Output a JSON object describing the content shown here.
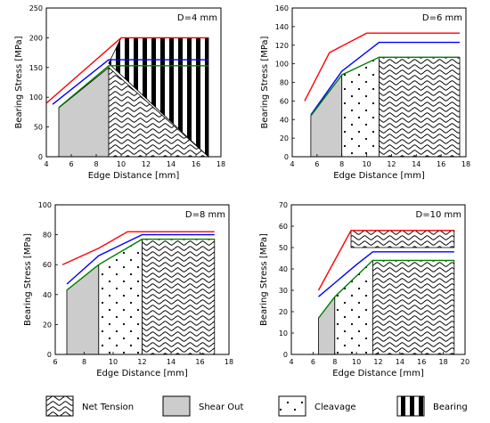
{
  "chart_data": [
    {
      "type": "area",
      "panel_label": "D=4 mm",
      "xlabel": "Edge Distance [mm]",
      "ylabel": "Bearing Stress [MPa]",
      "xlim": [
        4,
        18
      ],
      "ylim": [
        0,
        250
      ],
      "xticks": [
        "4",
        "6",
        "8",
        "10",
        "12",
        "14",
        "16",
        "18"
      ],
      "yticks": [
        "0",
        "50",
        "100",
        "150",
        "200",
        "250"
      ],
      "series": [
        {
          "color": "#ff0000",
          "points": [
            [
              4,
              90
            ],
            [
              10,
              200
            ],
            [
              17,
              200
            ]
          ]
        },
        {
          "color": "#0000ff",
          "points": [
            [
              4.5,
              88
            ],
            [
              9,
              163
            ],
            [
              17,
              163
            ]
          ]
        },
        {
          "color": "#008000",
          "points": [
            [
              5,
              83
            ],
            [
              9,
              153
            ],
            [
              17,
              153
            ]
          ]
        }
      ],
      "regions": [
        {
          "failure": "shear_out",
          "points": [
            [
              5,
              82
            ],
            [
              9,
              150
            ],
            [
              9,
              0
            ],
            [
              5,
              0
            ]
          ]
        },
        {
          "failure": "net_tension",
          "points": [
            [
              9,
              150
            ],
            [
              17,
              0
            ],
            [
              9,
              0
            ]
          ]
        },
        {
          "failure": "bearing",
          "points": [
            [
              9,
              157
            ],
            [
              10,
              200
            ],
            [
              17,
              200
            ],
            [
              17,
              0
            ]
          ]
        }
      ]
    },
    {
      "type": "area",
      "panel_label": "D=6 mm",
      "xlabel": "Edge Distance [mm]",
      "ylabel": "Bearing Stress [MPa]",
      "xlim": [
        4,
        18
      ],
      "ylim": [
        0,
        160
      ],
      "xticks": [
        "4",
        "6",
        "8",
        "10",
        "12",
        "14",
        "16",
        "18"
      ],
      "yticks": [
        "0",
        "20",
        "40",
        "60",
        "80",
        "100",
        "120",
        "140",
        "160"
      ],
      "series": [
        {
          "color": "#ff0000",
          "points": [
            [
              5,
              60
            ],
            [
              7,
              112
            ],
            [
              10,
              133
            ],
            [
              17.5,
              133
            ]
          ]
        },
        {
          "color": "#0000ff",
          "points": [
            [
              5.5,
              45
            ],
            [
              8,
              92
            ],
            [
              11,
              123
            ],
            [
              17.5,
              123
            ]
          ]
        },
        {
          "color": "#008000",
          "points": [
            [
              5.5,
              44
            ],
            [
              8,
              88
            ],
            [
              11,
              107
            ],
            [
              17.5,
              107
            ]
          ]
        }
      ],
      "regions": [
        {
          "failure": "shear_out",
          "points": [
            [
              5.5,
              44
            ],
            [
              8,
              88
            ],
            [
              8,
              0
            ],
            [
              5.5,
              0
            ]
          ]
        },
        {
          "failure": "cleavage",
          "points": [
            [
              8,
              88
            ],
            [
              11,
              107
            ],
            [
              11,
              0
            ],
            [
              8,
              0
            ]
          ]
        },
        {
          "failure": "net_tension",
          "points": [
            [
              11,
              107
            ],
            [
              17.5,
              107
            ],
            [
              17.5,
              0
            ],
            [
              11,
              0
            ]
          ]
        }
      ]
    },
    {
      "type": "area",
      "panel_label": "D=8 mm",
      "xlabel": "Edge Distance [mm]",
      "ylabel": "Bearing Stress [MPa]",
      "xlim": [
        6,
        18
      ],
      "ylim": [
        0,
        100
      ],
      "xticks": [
        "6",
        "8",
        "10",
        "12",
        "14",
        "16",
        "18"
      ],
      "yticks": [
        "0",
        "20",
        "40",
        "60",
        "80",
        "100"
      ],
      "series": [
        {
          "color": "#ff0000",
          "points": [
            [
              6.5,
              60
            ],
            [
              9,
              71
            ],
            [
              11,
              82
            ],
            [
              17,
              82
            ]
          ]
        },
        {
          "color": "#0000ff",
          "points": [
            [
              6.8,
              47
            ],
            [
              9,
              66
            ],
            [
              12,
              80
            ],
            [
              17,
              80
            ]
          ]
        },
        {
          "color": "#008000",
          "points": [
            [
              6.8,
              43
            ],
            [
              9,
              60
            ],
            [
              12,
              77
            ],
            [
              17,
              77
            ]
          ]
        }
      ],
      "regions": [
        {
          "failure": "shear_out",
          "points": [
            [
              6.8,
              43
            ],
            [
              9,
              60
            ],
            [
              9,
              0
            ],
            [
              6.8,
              0
            ]
          ]
        },
        {
          "failure": "cleavage",
          "points": [
            [
              9,
              60
            ],
            [
              12,
              77
            ],
            [
              12,
              0
            ],
            [
              9,
              0
            ]
          ]
        },
        {
          "failure": "net_tension",
          "points": [
            [
              12,
              77
            ],
            [
              17,
              77
            ],
            [
              17,
              0
            ],
            [
              12,
              0
            ]
          ]
        }
      ]
    },
    {
      "type": "area",
      "panel_label": "D=10 mm",
      "xlabel": "Edge Distance [mm]",
      "ylabel": "Bearing Stress [MPa]",
      "xlim": [
        4,
        20
      ],
      "ylim": [
        0,
        70
      ],
      "xticks": [
        "4",
        "6",
        "8",
        "10",
        "12",
        "14",
        "16",
        "18",
        "20"
      ],
      "yticks": [
        "0",
        "10",
        "20",
        "30",
        "40",
        "50",
        "60",
        "70"
      ],
      "series": [
        {
          "color": "#ff0000",
          "points": [
            [
              6.5,
              30
            ],
            [
              9.5,
              58
            ],
            [
              19,
              58
            ]
          ]
        },
        {
          "color": "#0000ff",
          "points": [
            [
              6.5,
              27
            ],
            [
              10,
              42
            ],
            [
              11.5,
              48
            ],
            [
              19,
              48
            ]
          ]
        },
        {
          "color": "#008000",
          "points": [
            [
              6.5,
              17
            ],
            [
              8,
              27
            ],
            [
              11.5,
              44
            ],
            [
              19,
              44
            ]
          ]
        }
      ],
      "regions": [
        {
          "failure": "shear_out",
          "points": [
            [
              6.5,
              17
            ],
            [
              8,
              27
            ],
            [
              8,
              0
            ],
            [
              6.5,
              0
            ]
          ]
        },
        {
          "failure": "cleavage",
          "points": [
            [
              8,
              27
            ],
            [
              11.5,
              44
            ],
            [
              11.5,
              0
            ],
            [
              8,
              0
            ]
          ]
        },
        {
          "failure": "net_tension",
          "points": [
            [
              11.5,
              44
            ],
            [
              19,
              44
            ],
            [
              19,
              0
            ],
            [
              11.5,
              0
            ]
          ]
        },
        {
          "failure": "net_tension",
          "points": [
            [
              9.5,
              50
            ],
            [
              9.5,
              58
            ],
            [
              19,
              58
            ],
            [
              19,
              50
            ]
          ]
        }
      ]
    }
  ],
  "legend": [
    {
      "key": "net_tension",
      "label": "Net Tension"
    },
    {
      "key": "shear_out",
      "label": "Shear Out"
    },
    {
      "key": "cleavage",
      "label": "Cleavage"
    },
    {
      "key": "bearing",
      "label": "Bearing"
    }
  ]
}
